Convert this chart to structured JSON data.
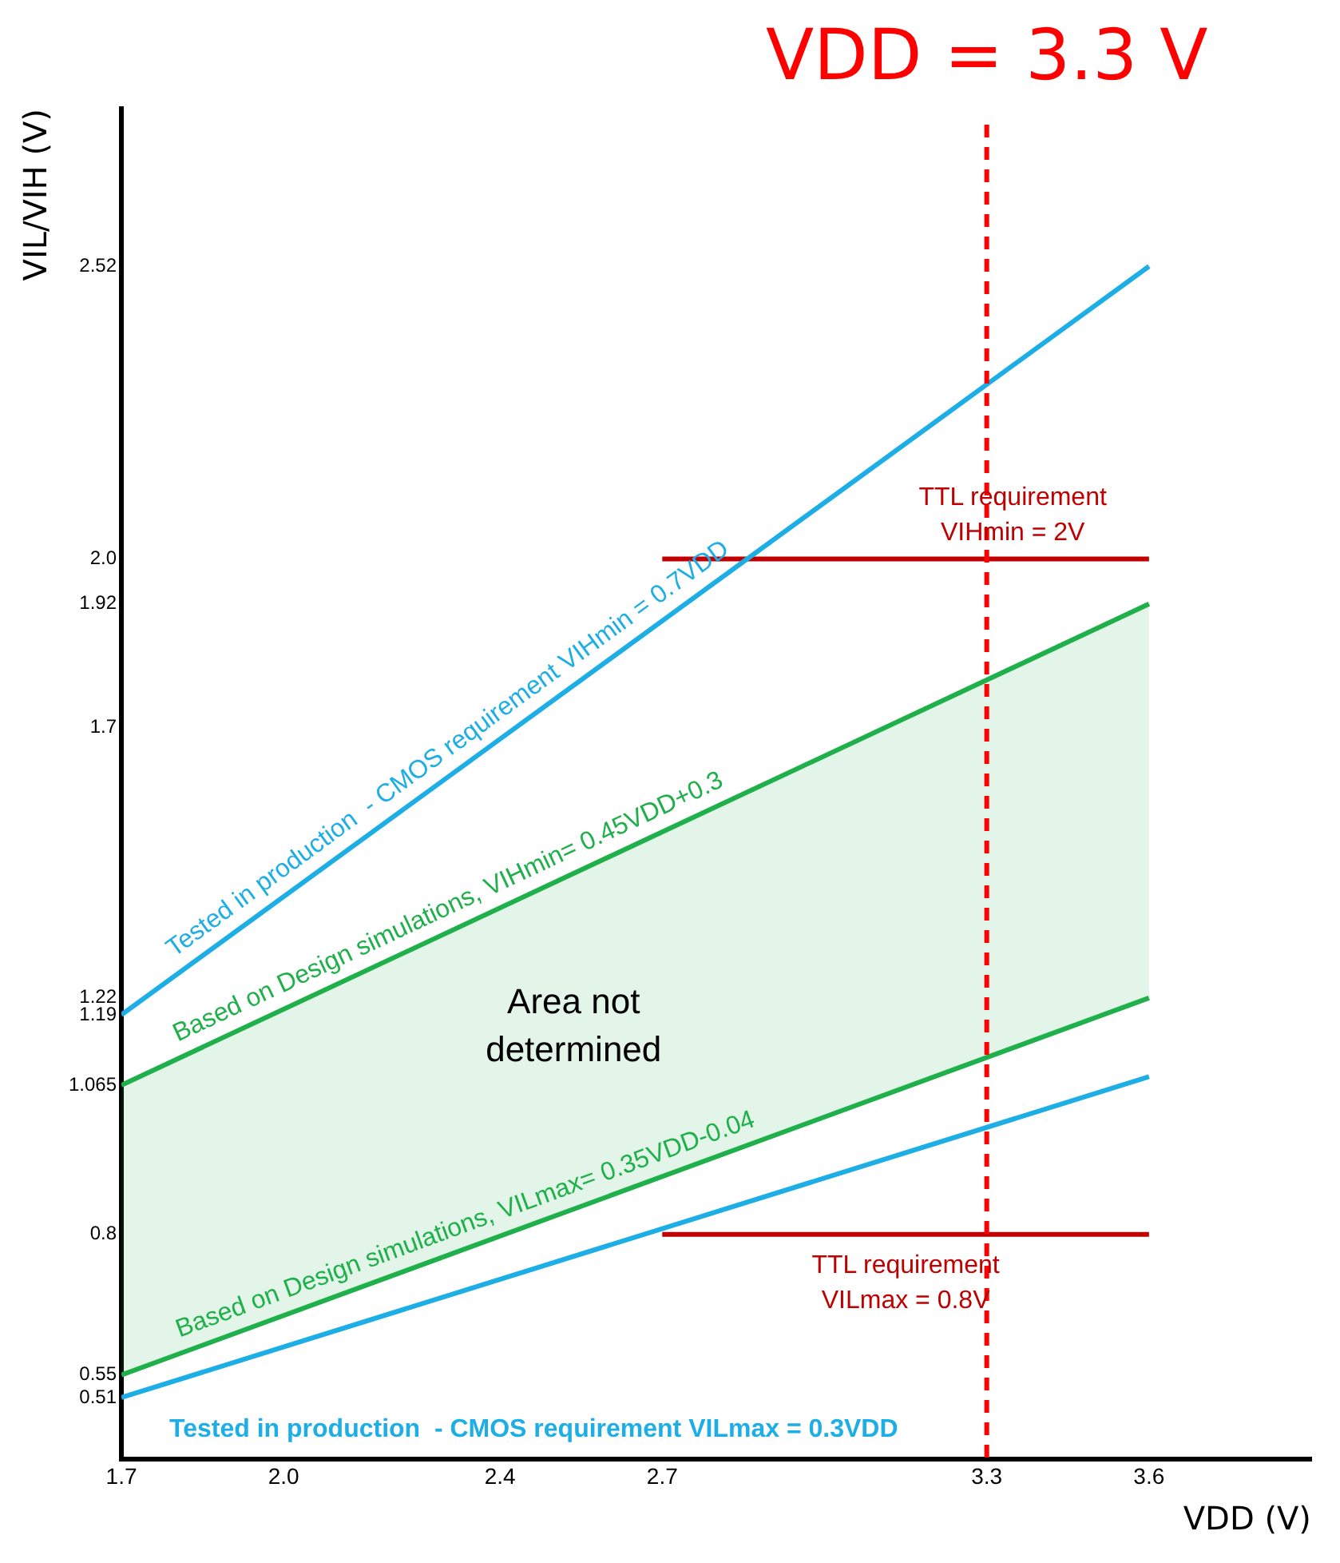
{
  "chart_data": {
    "type": "line",
    "xlabel": "VDD (V)",
    "ylabel": "VIL/VIH (V)",
    "xlim": [
      1.7,
      3.9
    ],
    "ylim": [
      0.4,
      2.8
    ],
    "xticks": [
      1.7,
      {
        "value": 2,
        "label": "2.0"
      },
      2.4,
      2.7,
      3.3,
      3.6
    ],
    "yticks": [
      0.51,
      0.55,
      0.8,
      1.065,
      1.19,
      1.22,
      1.7,
      1.92,
      {
        "value": 2,
        "label": "2.0"
      },
      2.52
    ],
    "grid": false,
    "legend": false,
    "marker": "none",
    "line_style": "solid",
    "series": [
      {
        "name": "Tested in production  - CMOS requirement VIHmin = 0.7VDD",
        "color": "#1eaee6",
        "x": [
          1.7,
          3.6
        ],
        "values": [
          1.19,
          2.52
        ]
      },
      {
        "name": "TTL requirement VIHmin = 2V",
        "color": "#c00000",
        "x": [
          2.7,
          3.6
        ],
        "values": [
          2,
          2
        ]
      },
      {
        "name": "Based on Design simulations, VIHmin= 0.45VDD+0.3",
        "color": "#1fb04b",
        "x": [
          1.7,
          3.6
        ],
        "values": [
          1.065,
          1.92
        ],
        "lower": [
          0.55,
          1.22
        ],
        "upper": [
          1.065,
          1.92
        ]
      },
      {
        "name": "Based on Design simulations, VILmax= 0.35VDD-0.04",
        "color": "#1fb04b",
        "x": [
          1.7,
          3.6
        ],
        "values": [
          0.55,
          1.22
        ]
      },
      {
        "name": "Tested in production  - CMOS requirement VILmax = 0.3VDD",
        "color": "#1eaee6",
        "x": [
          1.7,
          3.6
        ],
        "values": [
          0.51,
          1.08
        ]
      },
      {
        "name": "TTL requirement VILmax = 0.8V",
        "color": "#c00000",
        "x": [
          2.7,
          3.6
        ],
        "values": [
          0.8,
          0.8
        ]
      }
    ],
    "ref_lines": [
      {
        "axis": "x",
        "value": 3.3,
        "label": "VDD = 3.3 V",
        "color": "#ff0000",
        "line_style": "dashed"
      }
    ],
    "annotations": [
      "Area not determined"
    ]
  }
}
